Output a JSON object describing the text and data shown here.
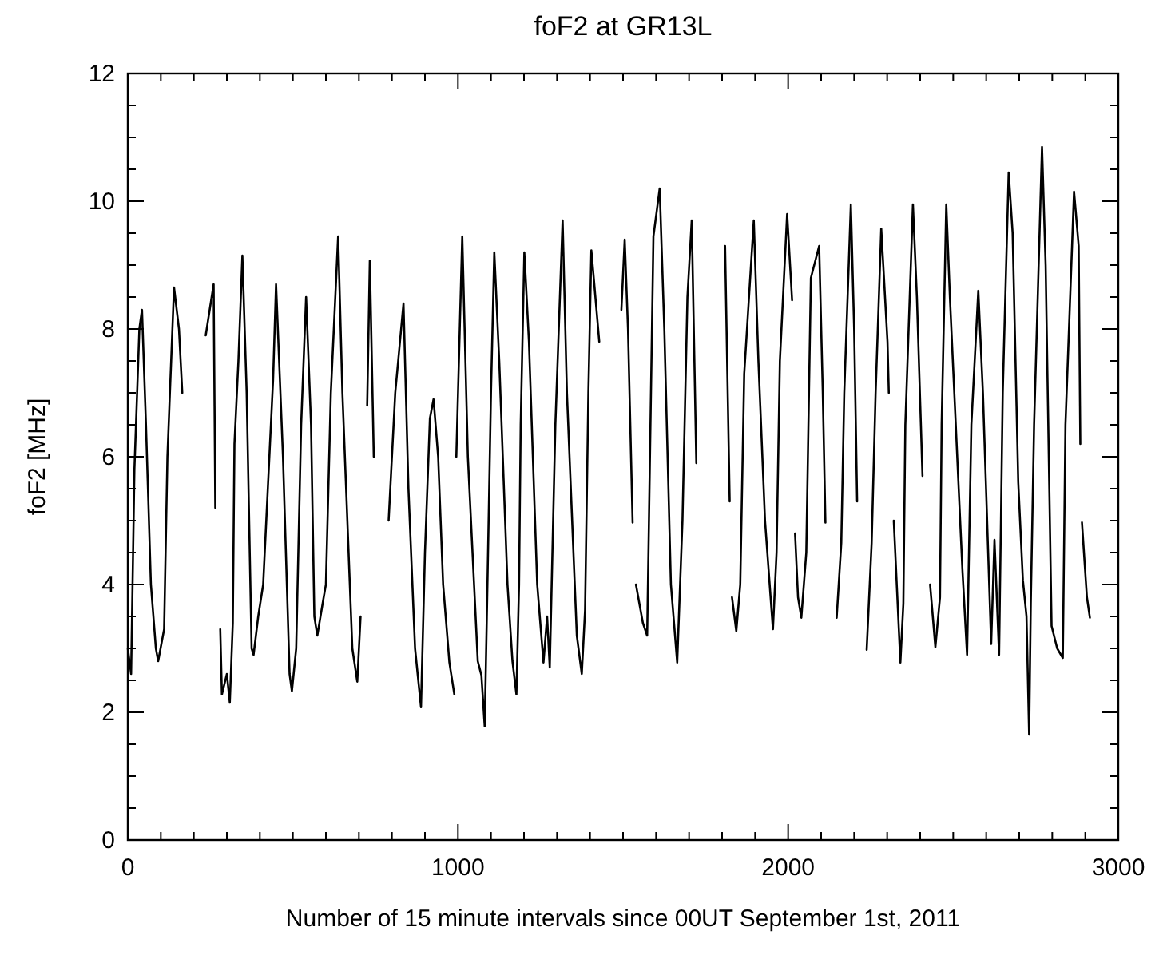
{
  "chart_data": {
    "type": "line",
    "title": "foF2 at GR13L",
    "xlabel": "Number of 15 minute intervals since 00UT September 1st, 2011",
    "ylabel": "foF2 [MHz]",
    "xlim": [
      0,
      3000
    ],
    "ylim": [
      0,
      12
    ],
    "xticks": [
      0,
      {
        "value": 100,
        "label": null
      },
      {
        "value": 200,
        "label": null
      },
      {
        "value": 300,
        "label": null
      },
      {
        "value": 400,
        "label": null
      },
      {
        "value": 500,
        "label": null
      },
      {
        "value": 600,
        "label": null
      },
      {
        "value": 700,
        "label": null
      },
      {
        "value": 800,
        "label": null
      },
      {
        "value": 900,
        "label": null
      },
      1000,
      {
        "value": 1100,
        "label": null
      },
      {
        "value": 1200,
        "label": null
      },
      {
        "value": 1300,
        "label": null
      },
      {
        "value": 1400,
        "label": null
      },
      {
        "value": 1500,
        "label": null
      },
      {
        "value": 1600,
        "label": null
      },
      {
        "value": 1700,
        "label": null
      },
      {
        "value": 1800,
        "label": null
      },
      {
        "value": 1900,
        "label": null
      },
      2000,
      {
        "value": 2100,
        "label": null
      },
      {
        "value": 2200,
        "label": null
      },
      {
        "value": 2300,
        "label": null
      },
      {
        "value": 2400,
        "label": null
      },
      {
        "value": 2500,
        "label": null
      },
      {
        "value": 2600,
        "label": null
      },
      {
        "value": 2700,
        "label": null
      },
      {
        "value": 2800,
        "label": null
      },
      {
        "value": 2900,
        "label": null
      },
      3000
    ],
    "yticks": [
      0,
      {
        "value": 0.5,
        "label": null
      },
      {
        "value": 1,
        "label": null
      },
      {
        "value": 1.5,
        "label": null
      },
      2,
      {
        "value": 2.5,
        "label": null
      },
      {
        "value": 3,
        "label": null
      },
      {
        "value": 3.5,
        "label": null
      },
      4,
      {
        "value": 4.5,
        "label": null
      },
      {
        "value": 5,
        "label": null
      },
      {
        "value": 5.5,
        "label": null
      },
      6,
      {
        "value": 6.5,
        "label": null
      },
      {
        "value": 7,
        "label": null
      },
      {
        "value": 7.5,
        "label": null
      },
      8,
      {
        "value": 8.5,
        "label": null
      },
      {
        "value": 9,
        "label": null
      },
      {
        "value": 9.5,
        "label": null
      },
      10,
      {
        "value": 10.5,
        "label": null
      },
      {
        "value": 11,
        "label": null
      },
      {
        "value": 11.5,
        "label": null
      },
      12
    ],
    "grid": false,
    "marker": "none",
    "line_style": "solid",
    "series": [
      {
        "color": "#000000",
        "x": [
          0,
          10,
          20,
          35,
          43,
          55,
          70,
          85,
          92,
          110,
          120,
          140,
          155,
          165,
          200,
          236,
          260,
          265,
          272,
          280,
          285,
          300,
          309,
          318,
          323,
          335,
          347,
          360,
          375,
          381,
          395,
          410,
          440,
          449,
          470,
          490,
          497,
          510,
          525,
          540,
          555,
          565,
          574,
          590,
          600,
          615,
          637,
          650,
          680,
          695,
          705,
          715,
          725,
          733,
          745,
          765,
          790,
          810,
          835,
          850,
          870,
          888,
          900,
          915,
          926,
          940,
          955,
          974,
          989,
          992,
          995,
          1013,
          1030,
          1060,
          1071,
          1081,
          1090,
          1100,
          1110,
          1125,
          1150,
          1165,
          1177,
          1185,
          1190,
          1201,
          1215,
          1240,
          1259,
          1270,
          1278,
          1295,
          1317,
          1330,
          1360,
          1375,
          1385,
          1395,
          1404,
          1428,
          1460,
          1495,
          1505,
          1515,
          1529,
          1534,
          1539,
          1560,
          1573,
          1592,
          1611,
          1625,
          1645,
          1664,
          1680,
          1695,
          1708,
          1722,
          1765,
          1809,
          1823,
          1826,
          1830,
          1843,
          1855,
          1867,
          1896,
          1910,
          1930,
          1954,
          1965,
          1975,
          1997,
          2012,
          2016,
          2021,
          2030,
          2040,
          2055,
          2069,
          2094,
          2105,
          2113,
          2130,
          2147,
          2161,
          2170,
          2190,
          2200,
          2209,
          2224,
          2238,
          2253,
          2265,
          2282,
          2301,
          2305,
          2312,
          2320,
          2340,
          2349,
          2355,
          2378,
          2390,
          2407,
          2418,
          2430,
          2446,
          2460,
          2465,
          2479,
          2490,
          2528,
          2542,
          2555,
          2576,
          2590,
          2615,
          2625,
          2639,
          2650,
          2668,
          2680,
          2697,
          2711,
          2722,
          2730,
          2735,
          2745,
          2769,
          2780,
          2798,
          2815,
          2832,
          2840,
          2866,
          2880,
          2885,
          2887,
          2890,
          2905,
          2914
        ],
        "values": [
          3.0,
          2.6,
          5.8,
          8.0,
          8.3,
          6.5,
          4.0,
          3.0,
          2.8,
          3.3,
          6.0,
          8.65,
          8.0,
          7.0,
          null,
          7.9,
          8.7,
          5.2,
          null,
          3.3,
          2.28,
          2.6,
          2.15,
          3.4,
          6.2,
          7.5,
          9.15,
          7.0,
          3.0,
          2.9,
          3.5,
          4.0,
          7.2,
          8.7,
          6.0,
          2.6,
          2.33,
          3.0,
          6.5,
          8.5,
          6.5,
          3.5,
          3.2,
          3.7,
          4.0,
          7.0,
          9.45,
          7.0,
          3.0,
          2.48,
          3.5,
          null,
          6.8,
          9.07,
          6.0,
          null,
          5.0,
          7.0,
          8.4,
          5.5,
          3.0,
          2.08,
          4.5,
          6.6,
          6.9,
          6.0,
          4.0,
          2.78,
          2.28,
          null,
          6.0,
          9.45,
          6.0,
          2.8,
          2.58,
          1.78,
          4.2,
          7.0,
          9.2,
          7.5,
          4.0,
          2.8,
          2.28,
          4.0,
          6.5,
          9.2,
          7.8,
          4.0,
          2.78,
          3.5,
          2.7,
          6.5,
          9.7,
          7.0,
          3.2,
          2.6,
          3.6,
          7.0,
          9.23,
          7.8,
          null,
          8.3,
          9.4,
          8.0,
          4.97,
          null,
          4.0,
          3.4,
          3.2,
          9.45,
          10.2,
          8.0,
          4.0,
          2.78,
          5.0,
          8.5,
          9.7,
          5.9,
          null,
          9.3,
          5.3,
          null,
          3.8,
          3.27,
          4.0,
          7.3,
          9.7,
          7.5,
          5.0,
          3.3,
          4.5,
          7.5,
          9.8,
          8.45,
          null,
          4.8,
          3.8,
          3.48,
          4.5,
          8.8,
          9.3,
          7.0,
          4.97,
          null,
          3.48,
          4.65,
          7.0,
          9.95,
          8.0,
          5.3,
          null,
          2.98,
          4.65,
          7.0,
          9.57,
          7.8,
          7.0,
          null,
          5.0,
          2.78,
          3.7,
          6.5,
          9.95,
          8.5,
          5.7,
          null,
          4.0,
          3.02,
          3.8,
          6.5,
          9.95,
          8.5,
          4.22,
          2.9,
          6.5,
          8.6,
          7.0,
          3.07,
          4.7,
          2.9,
          7.0,
          10.45,
          9.5,
          5.6,
          4.07,
          3.5,
          1.65,
          3.7,
          6.5,
          10.85,
          9.0,
          3.35,
          3.0,
          2.85,
          6.5,
          10.15,
          9.3,
          6.2,
          null,
          4.97,
          3.8,
          3.48
        ]
      }
    ]
  }
}
